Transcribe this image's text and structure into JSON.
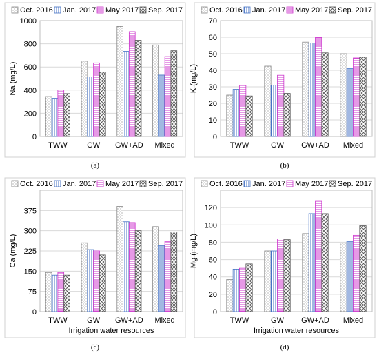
{
  "legend": [
    {
      "name": "Oct. 2016",
      "pattern": "dots"
    },
    {
      "name": "Jan. 2017",
      "pattern": "vlines"
    },
    {
      "name": "May 2017",
      "pattern": "hlines"
    },
    {
      "name": "Sep. 2017",
      "pattern": "cross"
    }
  ],
  "colors": {
    "border": "#4472c4",
    "fill_hlines": "#cc33cc",
    "fill_vlines": "#4472c4",
    "fill_dots": "#999999",
    "fill_cross": "#555555"
  },
  "chart_data": [
    {
      "type": "bar",
      "caption": "(a)",
      "ylabel": "Na (mg/L)",
      "xlabel": "",
      "categories": [
        "TWW",
        "GW",
        "GW+AD",
        "Mixed"
      ],
      "ylim": [
        0,
        1000
      ],
      "yticks": [
        0,
        200,
        400,
        600,
        800,
        1000
      ],
      "series": [
        {
          "name": "Oct. 2016",
          "values": [
            345,
            650,
            950,
            790
          ]
        },
        {
          "name": "Jan. 2017",
          "values": [
            330,
            515,
            735,
            530
          ]
        },
        {
          "name": "May 2017",
          "values": [
            400,
            635,
            905,
            690
          ]
        },
        {
          "name": "Sep. 2017",
          "values": [
            370,
            555,
            830,
            740
          ]
        }
      ],
      "grid": true
    },
    {
      "type": "bar",
      "caption": "(b)",
      "ylabel": "K (mg/L)",
      "xlabel": "",
      "categories": [
        "TWW",
        "GW",
        "GW+AD",
        "Mixed"
      ],
      "ylim": [
        0,
        70
      ],
      "yticks": [
        0,
        10,
        20,
        30,
        40,
        50,
        60,
        70
      ],
      "series": [
        {
          "name": "Oct. 2016",
          "values": [
            25,
            42.5,
            57,
            50
          ]
        },
        {
          "name": "Jan. 2017",
          "values": [
            28.5,
            31,
            56.5,
            41
          ]
        },
        {
          "name": "May 2017",
          "values": [
            31,
            37,
            60,
            47.5
          ]
        },
        {
          "name": "Sep. 2017",
          "values": [
            24.5,
            26,
            50.5,
            48
          ]
        }
      ],
      "grid": true
    },
    {
      "type": "bar",
      "caption": "(c)",
      "ylabel": "Ca (mg/L)",
      "xlabel": "Irrigation water resources",
      "categories": [
        "TWW",
        "GW",
        "GW+AD",
        "Mixed"
      ],
      "ylim": [
        0,
        450
      ],
      "yticks": [
        0,
        75,
        150,
        225,
        300,
        375
      ],
      "series": [
        {
          "name": "Oct. 2016",
          "values": [
            145,
            255,
            390,
            315
          ]
        },
        {
          "name": "Jan. 2017",
          "values": [
            135,
            230,
            333,
            245
          ]
        },
        {
          "name": "May 2017",
          "values": [
            145,
            225,
            330,
            260
          ]
        },
        {
          "name": "Sep. 2017",
          "values": [
            135,
            210,
            300,
            295
          ]
        }
      ],
      "grid": true
    },
    {
      "type": "bar",
      "caption": "(d)",
      "ylabel": "Mg (mg/L)",
      "xlabel": "Irrigation water resources",
      "categories": [
        "TWW",
        "GW",
        "GW+AD",
        "Mixed"
      ],
      "ylim": [
        0,
        140
      ],
      "yticks": [
        0,
        20,
        40,
        60,
        80,
        100,
        120
      ],
      "series": [
        {
          "name": "Oct. 2016",
          "values": [
            37,
            70,
            90,
            79
          ]
        },
        {
          "name": "Jan. 2017",
          "values": [
            49,
            70,
            113,
            81
          ]
        },
        {
          "name": "May 2017",
          "values": [
            50,
            84,
            128,
            88
          ]
        },
        {
          "name": "Sep. 2017",
          "values": [
            55,
            83,
            113,
            99
          ]
        }
      ],
      "grid": true
    }
  ]
}
